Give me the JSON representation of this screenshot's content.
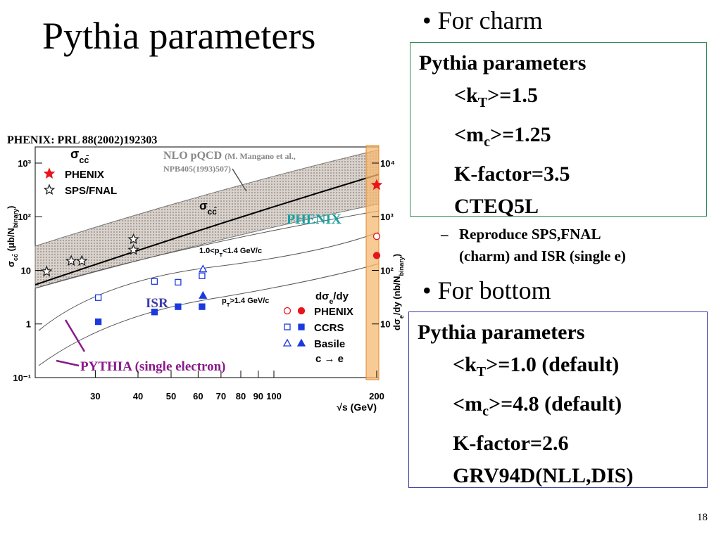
{
  "title": "Pythia parameters",
  "page_number": "18",
  "charm": {
    "bullet": "For charm",
    "box_title": "Pythia parameters",
    "box_lines": [
      [
        {
          "t": "<k"
        },
        {
          "sub": "T"
        },
        {
          "t": ">=1.5"
        }
      ],
      [
        {
          "t": "<m"
        },
        {
          "sub": "c"
        },
        {
          "t": ">=1.25"
        }
      ],
      [
        {
          "t": "K-factor=3.5"
        }
      ],
      [
        {
          "t": "CTEQ5L"
        }
      ]
    ],
    "sub_item": [
      "Reproduce SPS,FNAL",
      "(charm) and ISR (single e)"
    ]
  },
  "bottom": {
    "bullet": "For bottom",
    "box_title": "Pythia parameters",
    "box_lines": [
      [
        {
          "t": "<k"
        },
        {
          "sub": "T"
        },
        {
          "t": ">=1.0 (default)"
        }
      ],
      [
        {
          "t": "<m"
        },
        {
          "sub": "c"
        },
        {
          "t": ">=4.8 (default)"
        }
      ],
      [
        {
          "t": "K-factor=2.6"
        }
      ],
      [
        {
          "t": "GRV94D(NLL,DIS)"
        }
      ]
    ]
  },
  "figure_annotations": {
    "reference": "PHENIX: PRL 88(2002)192303",
    "nlo": "NLO pQCD",
    "nlo_ref_1": "(M. Mangano et al.,",
    "nlo_ref_2": "NPB405(1993)507)",
    "phenix": "PHENIX",
    "isr": "ISR",
    "pythia": "PYTHIA (single electron)"
  },
  "chart_data": {
    "type": "scatter",
    "log_x": true,
    "log_y": true,
    "x_label": "√s (GeV)",
    "y_label": [
      {
        "t": "σ"
      },
      {
        "sub": "cc̄"
      },
      {
        "t": " (μb/N"
      },
      {
        "sub": "binary"
      },
      {
        "t": ")"
      }
    ],
    "y2_label": [
      {
        "t": "dσ"
      },
      {
        "sub": "e"
      },
      {
        "t": "/dy (nb/N"
      },
      {
        "sub": "binary"
      },
      {
        "t": ")"
      }
    ],
    "xlim": [
      20,
      200
    ],
    "xticks": [
      30,
      40,
      50,
      60,
      70,
      80,
      90,
      100,
      200
    ],
    "ylim": [
      0.1,
      2000
    ],
    "yticks": [
      {
        "value": 0.1,
        "label": "10⁻¹"
      },
      1,
      10,
      {
        "value": 100,
        "label": "10²"
      },
      {
        "value": 1000,
        "label": "10³"
      }
    ],
    "y2lim": [
      1,
      20000
    ],
    "y2ticks": [
      10,
      {
        "value": 100,
        "label": "10²"
      },
      {
        "value": 1000,
        "label": "10³"
      },
      {
        "value": 10000,
        "label": "10⁴"
      }
    ],
    "charm_legend_title": [
      {
        "t": "σ"
      },
      {
        "sub": "cc̄"
      }
    ],
    "electron_legend_title": [
      {
        "t": "dσ"
      },
      {
        "sub": "e"
      },
      {
        "t": "/dy"
      }
    ],
    "sigma_curve_label": [
      {
        "t": "σ"
      },
      {
        "sub": "cc̄"
      }
    ],
    "low_pt_label": [
      {
        "t": "1.0<p"
      },
      {
        "sub": "T"
      },
      {
        "t": "<1.4 GeV/c"
      }
    ],
    "high_pt_label": [
      {
        "t": "p"
      },
      {
        "sub": "T"
      },
      {
        "t": ">1.4 GeV/c"
      }
    ],
    "process_label": "c → e",
    "series": [
      {
        "name": "PHENIX",
        "color": "#e8141c",
        "marker": "star",
        "filled": true,
        "x": [
          200
        ],
        "values": [
          390
        ]
      },
      {
        "name": "SPS/FNAL",
        "color": "#222222",
        "marker": "star",
        "filled": false,
        "x": [
          21.6,
          25.5,
          27.4,
          38.8,
          38.8
        ],
        "values": [
          9.5,
          15,
          15,
          38,
          24
        ]
      }
    ],
    "electron_series": [
      {
        "name": "PHENIX",
        "axis": "y2",
        "color": "#e8141c",
        "marker": "circle",
        "x": [
          200
        ],
        "values": [
          430
        ],
        "values_high_pt": [
          189
        ]
      },
      {
        "name": "CCRS",
        "axis": "y2",
        "color": "#1a3adf",
        "marker": "square",
        "x": [
          30.6,
          44.7,
          52.4,
          61.6
        ],
        "values": [
          31,
          62,
          60,
          79
        ],
        "values_high_pt": [
          11,
          16.7,
          21,
          21
        ]
      },
      {
        "name": "Basile",
        "axis": "y2",
        "color": "#1a3adf",
        "marker": "triangle",
        "x": [
          62
        ],
        "values": [
          106
        ],
        "values_high_pt": [
          34
        ]
      }
    ]
  }
}
